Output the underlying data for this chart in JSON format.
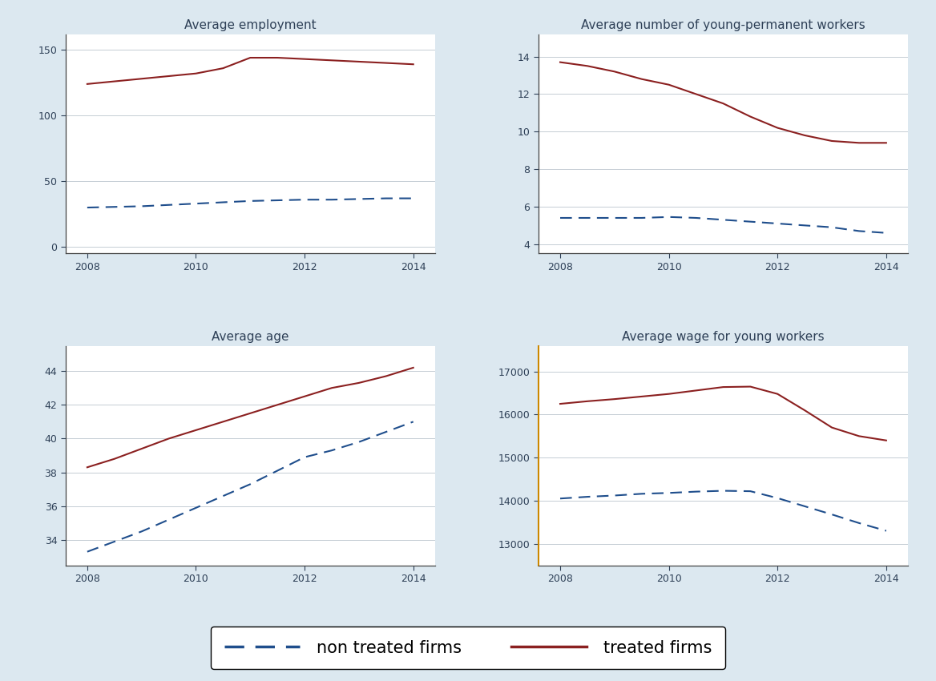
{
  "background_color": "#dce8f0",
  "plot_bg_color": "#ffffff",
  "title_color": "#2e4057",
  "axis_label_color": "#2e4057",
  "treated_color": "#8b2020",
  "control_color": "#1f4e8c",
  "years": [
    2008,
    2008.5,
    2009,
    2009.5,
    2010,
    2010.5,
    2011,
    2011.5,
    2012,
    2012.5,
    2013,
    2013.5,
    2014
  ],
  "employment_treated": [
    124,
    126,
    128,
    130,
    132,
    136,
    144,
    144,
    143,
    142,
    141,
    140,
    139
  ],
  "employment_control": [
    30,
    30.5,
    31,
    32,
    33,
    34,
    35,
    35.5,
    36,
    36,
    36.5,
    37,
    37
  ],
  "young_perm_treated": [
    13.7,
    13.5,
    13.2,
    12.8,
    12.5,
    12.0,
    11.5,
    10.8,
    10.2,
    9.8,
    9.5,
    9.4,
    9.4
  ],
  "young_perm_control": [
    5.4,
    5.4,
    5.4,
    5.4,
    5.45,
    5.4,
    5.3,
    5.2,
    5.1,
    5.0,
    4.9,
    4.7,
    4.6
  ],
  "avg_age_treated": [
    38.3,
    38.8,
    39.4,
    40.0,
    40.5,
    41.0,
    41.5,
    42.0,
    42.5,
    43.0,
    43.3,
    43.7,
    44.2
  ],
  "avg_age_control": [
    33.3,
    33.9,
    34.5,
    35.2,
    35.9,
    36.6,
    37.3,
    38.1,
    38.9,
    39.3,
    39.8,
    40.4,
    41.0
  ],
  "avg_wage_treated": [
    16250,
    16310,
    16360,
    16420,
    16480,
    16560,
    16640,
    16650,
    16480,
    16100,
    15700,
    15500,
    15400
  ],
  "avg_wage_control": [
    14050,
    14090,
    14120,
    14160,
    14180,
    14210,
    14230,
    14220,
    14060,
    13870,
    13680,
    13480,
    13300
  ],
  "titles": [
    "Average employment",
    "Average number of young-permanent workers",
    "Average age",
    "Average wage for young workers"
  ],
  "employment_yticks": [
    0,
    50,
    100,
    150
  ],
  "employment_ylim": [
    -5,
    162
  ],
  "young_perm_yticks": [
    4,
    6,
    8,
    10,
    12,
    14
  ],
  "young_perm_ylim": [
    3.5,
    15.2
  ],
  "avg_age_yticks": [
    34,
    36,
    38,
    40,
    42,
    44
  ],
  "avg_age_ylim": [
    32.5,
    45.5
  ],
  "avg_wage_yticks": [
    13000,
    14000,
    15000,
    16000,
    17000
  ],
  "avg_wage_ylim": [
    12500,
    17600
  ],
  "xticks": [
    2008,
    2010,
    2012,
    2014
  ],
  "xlim": [
    2007.6,
    2014.4
  ],
  "legend_labels": [
    "non treated firms",
    "treated firms"
  ],
  "title_fontsize": 11,
  "tick_fontsize": 9,
  "legend_fontsize": 15
}
